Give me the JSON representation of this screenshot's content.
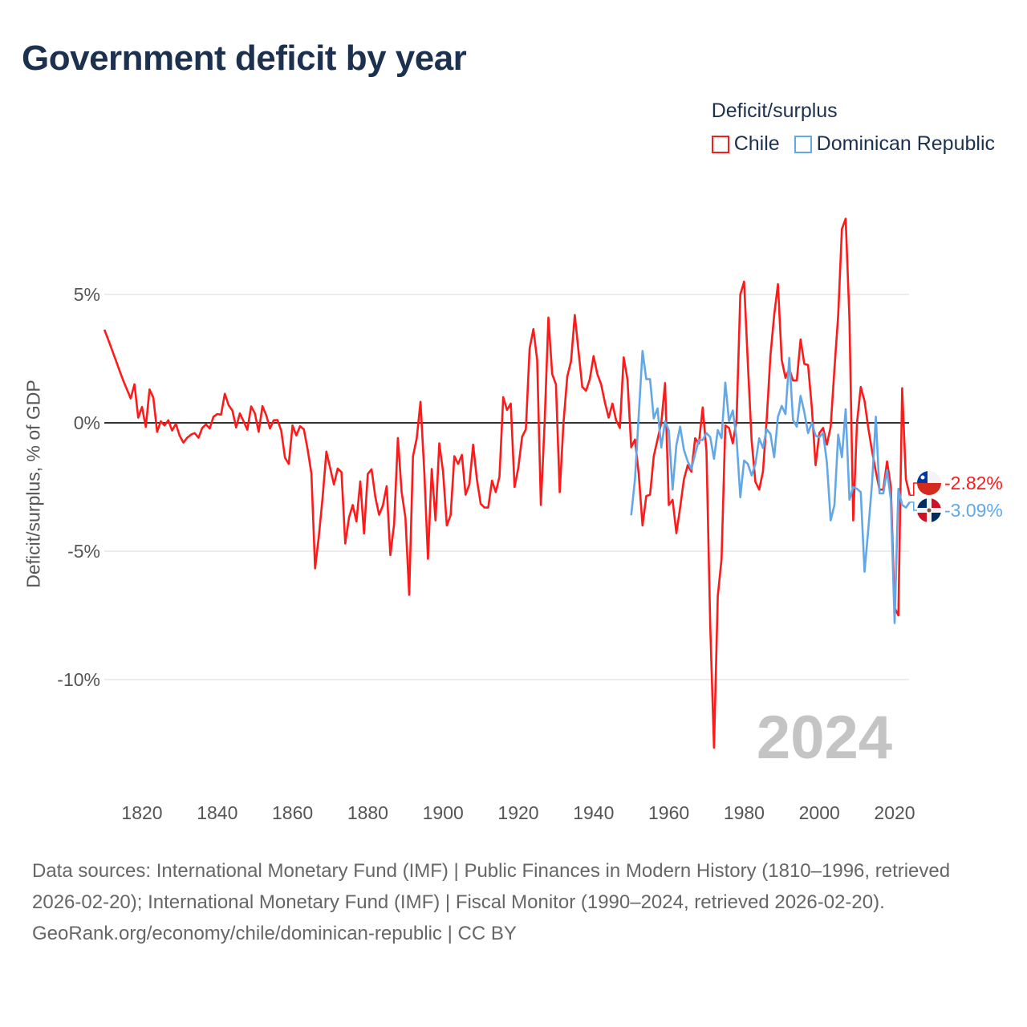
{
  "title": "Government deficit by year",
  "legend": {
    "title": "Deficit/surplus",
    "items": [
      {
        "label": "Chile",
        "color": "#ff1a1a"
      },
      {
        "label": "Dominican Republic",
        "color": "#62a8e8"
      }
    ]
  },
  "footer": {
    "sources": "Data sources: International Monetary Fund (IMF) | Public Finances in Modern History (1810–1996, retrieved 2026-02-20); International Monetary Fund (IMF) | Fiscal Monitor (1990–2024, retrieved 2026-02-20).",
    "credit": "GeoRank.org/economy/chile/dominican-republic | CC BY"
  },
  "chart_data": {
    "type": "line",
    "title": "Government deficit by year",
    "xlabel": "",
    "ylabel": "Deficit/surplus, % of GDP",
    "xlim": [
      1810,
      2024
    ],
    "ylim": [
      -13,
      8.5
    ],
    "grid": true,
    "legend_placement": "top-right",
    "year_watermark": "2024",
    "yticks": [
      {
        "value": 5,
        "label": "5%"
      },
      {
        "value": 0,
        "label": "0%"
      },
      {
        "value": -5,
        "label": "-5%"
      },
      {
        "value": -10,
        "label": "-10%"
      }
    ],
    "xticks": [
      {
        "value": 1820,
        "label": "1820"
      },
      {
        "value": 1840,
        "label": "1840"
      },
      {
        "value": 1860,
        "label": "1860"
      },
      {
        "value": 1880,
        "label": "1880"
      },
      {
        "value": 1900,
        "label": "1900"
      },
      {
        "value": 1920,
        "label": "1920"
      },
      {
        "value": 1940,
        "label": "1940"
      },
      {
        "value": 1960,
        "label": "1960"
      },
      {
        "value": 1980,
        "label": "1980"
      },
      {
        "value": 2000,
        "label": "2000"
      },
      {
        "value": 2020,
        "label": "2020"
      }
    ],
    "series": [
      {
        "name": "Chile",
        "color": "#ff1a1a",
        "start_year": 1810,
        "end_label": "-2.82%",
        "flag": "chile-flag",
        "values": [
          3.63,
          3.25,
          2.85,
          2.45,
          2.04,
          1.65,
          1.3,
          0.95,
          1.5,
          0.2,
          0.62,
          -0.16,
          1.3,
          0.98,
          -0.35,
          0.06,
          -0.1,
          0.1,
          -0.3,
          -0.04,
          -0.5,
          -0.77,
          -0.58,
          -0.46,
          -0.4,
          -0.58,
          -0.2,
          -0.06,
          -0.22,
          0.24,
          0.34,
          0.32,
          1.13,
          0.69,
          0.48,
          -0.18,
          0.37,
          0.06,
          -0.27,
          0.64,
          0.37,
          -0.35,
          0.65,
          0.3,
          -0.22,
          0.1,
          0.11,
          -0.3,
          -1.36,
          -1.6,
          -0.1,
          -0.49,
          -0.13,
          -0.25,
          -1.03,
          -1.97,
          -5.67,
          -4.42,
          -2.9,
          -1.12,
          -1.76,
          -2.4,
          -1.78,
          -1.92,
          -4.7,
          -3.69,
          -3.2,
          -3.84,
          -2.28,
          -4.31,
          -1.99,
          -1.81,
          -2.89,
          -3.58,
          -3.22,
          -2.47,
          -5.15,
          -3.95,
          -0.59,
          -2.7,
          -3.69,
          -6.7,
          -1.31,
          -0.6,
          0.82,
          -1.9,
          -5.3,
          -1.8,
          -3.8,
          -0.8,
          -1.9,
          -4.0,
          -3.6,
          -1.3,
          -1.6,
          -1.25,
          -2.8,
          -2.4,
          -0.85,
          -2.2,
          -3.15,
          -3.3,
          -3.3,
          -2.25,
          -2.7,
          -2.1,
          1.0,
          0.5,
          0.75,
          -2.5,
          -1.75,
          -0.55,
          -0.25,
          2.9,
          3.65,
          2.45,
          -3.2,
          0,
          4.1,
          1.9,
          1.5,
          -2.7,
          0,
          1.8,
          2.4,
          4.2,
          2.8,
          1.4,
          1.25,
          1.7,
          2.6,
          1.9,
          1.5,
          0.8,
          0.2,
          0.75,
          0.1,
          -0.2,
          2.55,
          1.7,
          -0.95,
          -0.65,
          -2.0,
          -4.0,
          -2.85,
          -2.8,
          -1.3,
          -0.65,
          0,
          1.55,
          -3.2,
          -3.0,
          -4.3,
          -3.3,
          -2.2,
          -1.65,
          -1.9,
          -0.6,
          -0.8,
          0.6,
          -1.1,
          -7.9,
          -12.65,
          -6.75,
          -5.3,
          -0.1,
          -0.2,
          -0.8,
          0.1,
          5.0,
          5.5,
          2.3,
          -0.7,
          -2.3,
          -2.6,
          -1.9,
          0.1,
          2.6,
          4.2,
          5.4,
          2.45,
          1.75,
          2.1,
          1.65,
          1.65,
          3.25,
          2.3,
          2.25,
          0.6,
          -1.65,
          -0.4,
          -0.2,
          -0.85,
          -0.15,
          2.1,
          4.2,
          7.55,
          7.95,
          4.05,
          -3.8,
          0,
          1.4,
          0.85,
          -0.2,
          -1.1,
          -1.9,
          -2.6,
          -2.6,
          -1.5,
          -2.5,
          -7.2,
          -7.5,
          1.35,
          -2.2,
          -2.82
        ]
      },
      {
        "name": "Dominican Republic",
        "color": "#62a8e8",
        "start_year": 1950,
        "end_label": "-3.09%",
        "flag": "dominican-republic-flag",
        "values": [
          -3.6,
          -2.2,
          0.3,
          2.8,
          1.7,
          1.7,
          0.17,
          0.56,
          -0.96,
          0.06,
          -0.3,
          -2.6,
          -0.87,
          -0.15,
          -1.05,
          -1.5,
          -1.8,
          -1.2,
          -0.67,
          -0.67,
          -0.4,
          -0.56,
          -1.4,
          -0.28,
          -0.6,
          1.57,
          0.06,
          0.48,
          -0.6,
          -2.9,
          -1.47,
          -1.6,
          -2.05,
          -1.6,
          -0.6,
          -0.98,
          -0.25,
          -0.43,
          -1.34,
          0.24,
          0.66,
          0.34,
          2.53,
          0.11,
          -0.15,
          1.05,
          0.43,
          -0.4,
          0,
          -0.5,
          -0.56,
          -0.4,
          -1.55,
          -3.8,
          -3.2,
          -0.46,
          -1.34,
          0.53,
          -3.0,
          -2.5,
          -2.57,
          -2.7,
          -5.8,
          -4.15,
          -2.33,
          0.24,
          -2.75,
          -2.75,
          -1.84,
          -3.0,
          -7.8,
          -2.57,
          -3.2,
          -3.3,
          -3.09
        ]
      }
    ]
  }
}
